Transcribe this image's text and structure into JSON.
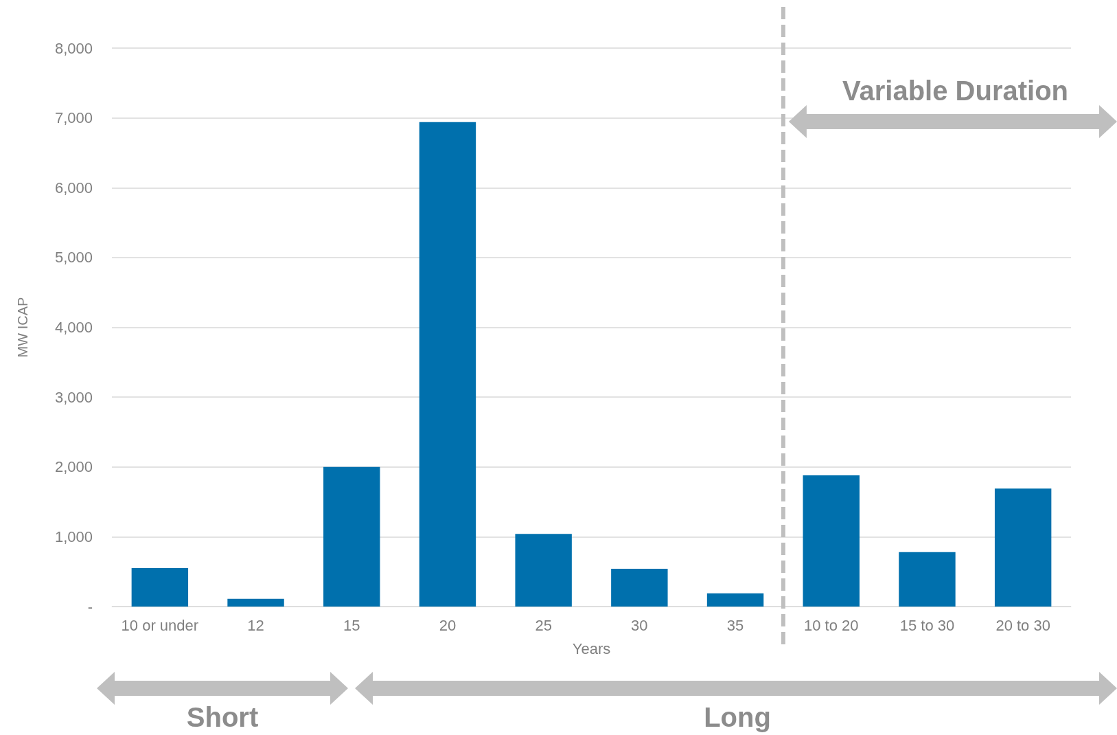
{
  "chart_data": {
    "type": "bar",
    "xlabel": "Years",
    "ylabel": "MW ICAP",
    "categories": [
      "10 or under",
      "12",
      "15",
      "20",
      "25",
      "30",
      "35",
      "10 to 20",
      "15 to 30",
      "20 to 30"
    ],
    "values": [
      550,
      110,
      2000,
      6940,
      1040,
      540,
      190,
      1880,
      780,
      1690
    ],
    "color": "#0070ad",
    "ylim": [
      0,
      8000
    ],
    "yticks": [
      {
        "value": 0,
        "label": "-"
      },
      {
        "value": 1000,
        "label": "1,000"
      },
      {
        "value": 2000,
        "label": "2,000"
      },
      {
        "value": 3000,
        "label": "3,000"
      },
      {
        "value": 4000,
        "label": "4,000"
      },
      {
        "value": 5000,
        "label": "5,000"
      },
      {
        "value": 6000,
        "label": "6,000"
      },
      {
        "value": 7000,
        "label": "7,000"
      },
      {
        "value": 8000,
        "label": "8,000"
      }
    ],
    "grid": "y",
    "annotations": [
      "Variable Duration",
      "Short",
      "Long"
    ]
  }
}
